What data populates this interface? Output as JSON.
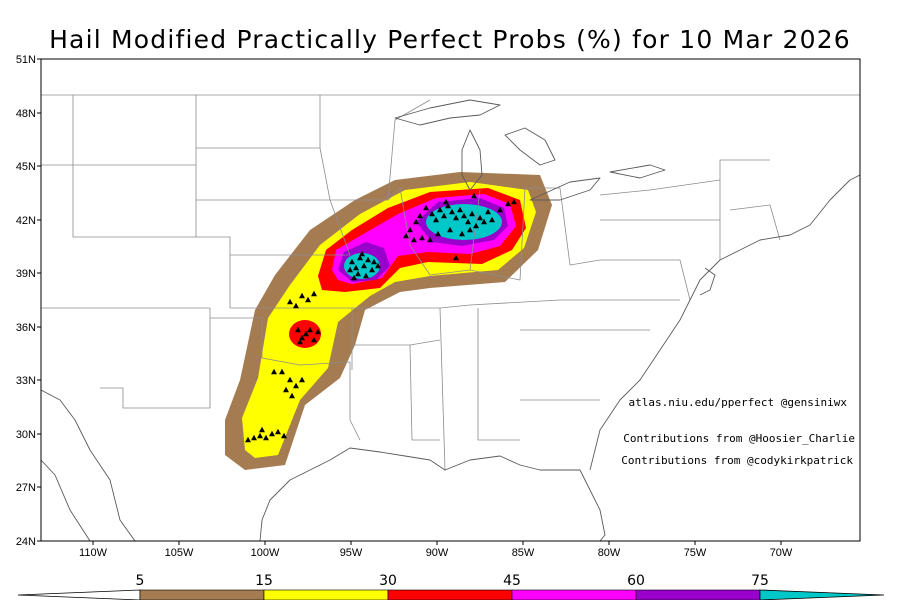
{
  "title": "Hail Modified Practically Perfect Probs (%) for 10 Mar 2026",
  "credits": {
    "line1": "atlas.niu.edu/pperfect @gensiniwx",
    "line2": "Contributions from @Hoosier_Charlie",
    "line3": "Contributions from @codykirkpatrick"
  },
  "axes": {
    "lat_labels": [
      "24N",
      "27N",
      "30N",
      "33N",
      "36N",
      "39N",
      "42N",
      "45N",
      "48N",
      "51N"
    ],
    "lon_labels": [
      "110W",
      "105W",
      "100W",
      "95W",
      "90W",
      "85W",
      "80W",
      "75W",
      "70W"
    ]
  },
  "colorbar": {
    "labels": [
      "5",
      "15",
      "30",
      "45",
      "60",
      "75"
    ],
    "colors": [
      "#a57c52",
      "#ffff00",
      "#ff0000",
      "#ff00ff",
      "#9900cc",
      "#00c8c8"
    ]
  },
  "contour_colors": {
    "p5": "#a57c52",
    "p15": "#ffff00",
    "p30": "#ff0000",
    "p45": "#ff00ff",
    "p60": "#9900cc",
    "p75": "#00c8c8"
  },
  "map_colors": {
    "background": "#ffffff",
    "state_borders": "#8c8c8c",
    "coastlines": "#5a5a5a",
    "reports": "#000000"
  },
  "report_marker": "black-triangle"
}
